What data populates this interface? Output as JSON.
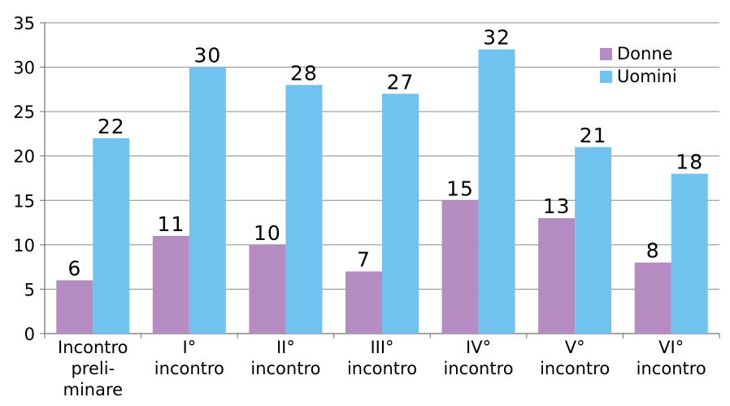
{
  "chart_data": {
    "type": "bar",
    "categories": [
      [
        "Incontro",
        "preli-",
        "minare"
      ],
      [
        "I°",
        "incontro"
      ],
      [
        "II°",
        "incontro"
      ],
      [
        "III°",
        "incontro"
      ],
      [
        "IV°",
        "incontro"
      ],
      [
        "V°",
        "incontro"
      ],
      [
        "VI°",
        "incontro"
      ]
    ],
    "series": [
      {
        "name": "Donne",
        "values": [
          6,
          11,
          10,
          7,
          15,
          13,
          8
        ],
        "color": "#b48cc2"
      },
      {
        "name": "Uomini",
        "values": [
          22,
          30,
          28,
          27,
          32,
          21,
          18
        ],
        "color": "#71c3ef"
      }
    ],
    "ylim": [
      0,
      35
    ],
    "yticks": [
      0,
      5,
      10,
      15,
      20,
      25,
      30,
      35
    ],
    "grid": true,
    "legend_position": "top-right",
    "data_labels": true
  }
}
